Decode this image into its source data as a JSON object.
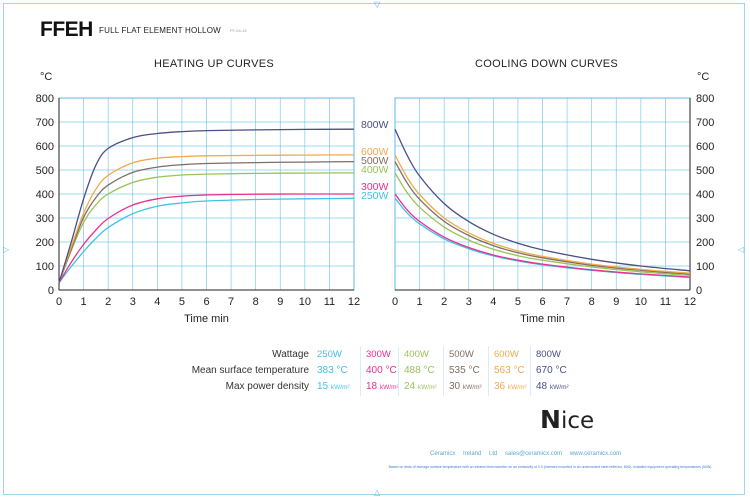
{
  "header": {
    "code": "FFEH",
    "subtitle": "FULL FLAT ELEMENT HOLLOW",
    "doc_version": "FF-04-13"
  },
  "colors": {
    "250W": "#3fc3e6",
    "300W": "#e8318f",
    "400W": "#9bc25a",
    "500W": "#7f6e63",
    "600W": "#f3a94a",
    "800W": "#4a4f86",
    "grid": "#5ab8e0"
  },
  "chart_data": [
    {
      "type": "line",
      "title": "HEATING UP CURVES",
      "xlabel": "Time min",
      "ylabel": "°C",
      "xlim": [
        0,
        12
      ],
      "ylim": [
        0,
        800
      ],
      "xticks": [
        0,
        1,
        2,
        3,
        4,
        5,
        6,
        7,
        8,
        9,
        10,
        11,
        12
      ],
      "yticks": [
        0,
        100,
        200,
        300,
        400,
        500,
        600,
        700,
        800
      ],
      "grid": true,
      "series": [
        {
          "name": "250W",
          "label": "250W",
          "x": [
            0,
            0.5,
            1,
            1.5,
            2,
            3,
            4,
            5,
            6,
            8,
            10,
            12
          ],
          "values": [
            30,
            98,
            160,
            215,
            260,
            318,
            349,
            363,
            371,
            377,
            380,
            382
          ]
        },
        {
          "name": "300W",
          "label": "300W",
          "x": [
            0,
            0.5,
            1,
            1.5,
            2,
            3,
            4,
            5,
            6,
            8,
            10,
            12
          ],
          "values": [
            30,
            116,
            190,
            250,
            298,
            354,
            380,
            391,
            396,
            399,
            400,
            400
          ]
        },
        {
          "name": "400W",
          "label": "400W",
          "x": [
            0,
            0.5,
            1,
            1.5,
            2,
            3,
            4,
            5,
            6,
            8,
            10,
            12
          ],
          "values": [
            30,
            165,
            282,
            355,
            400,
            448,
            470,
            479,
            483,
            486,
            487,
            488
          ]
        },
        {
          "name": "500W",
          "label": "500W",
          "x": [
            0,
            0.5,
            1,
            1.5,
            2,
            3,
            4,
            5,
            6,
            8,
            10,
            12
          ],
          "values": [
            30,
            170,
            303,
            385,
            437,
            490,
            512,
            522,
            527,
            531,
            533,
            535
          ]
        },
        {
          "name": "600W",
          "label": "600W",
          "x": [
            0,
            0.5,
            1,
            1.5,
            2,
            3,
            4,
            5,
            6,
            8,
            10,
            12
          ],
          "values": [
            30,
            180,
            320,
            420,
            478,
            530,
            549,
            556,
            559,
            561,
            562,
            563
          ]
        },
        {
          "name": "800W",
          "label": "800W",
          "x": [
            0,
            0.5,
            1,
            1.5,
            2,
            3,
            4,
            5,
            6,
            8,
            10,
            12
          ],
          "values": [
            30,
            200,
            380,
            520,
            590,
            635,
            652,
            660,
            664,
            667,
            669,
            670
          ]
        }
      ]
    },
    {
      "type": "line",
      "title": "COOLING DOWN CURVES",
      "xlabel": "Time min",
      "ylabel": "°C",
      "xlim": [
        0,
        12
      ],
      "ylim": [
        0,
        800
      ],
      "xticks": [
        0,
        1,
        2,
        3,
        4,
        5,
        6,
        7,
        8,
        9,
        10,
        11,
        12
      ],
      "yticks": [
        0,
        100,
        200,
        300,
        400,
        500,
        600,
        700,
        800
      ],
      "grid": true,
      "series": [
        {
          "name": "250W",
          "x": [
            0,
            0.5,
            1,
            2,
            3,
            4,
            5,
            6,
            8,
            10,
            12
          ],
          "values": [
            383,
            320,
            276,
            213,
            172,
            142,
            121,
            105,
            82,
            65,
            52
          ]
        },
        {
          "name": "300W",
          "x": [
            0,
            0.5,
            1,
            2,
            3,
            4,
            5,
            6,
            8,
            10,
            12
          ],
          "values": [
            400,
            333,
            286,
            220,
            177,
            146,
            124,
            108,
            84,
            67,
            54
          ]
        },
        {
          "name": "400W",
          "x": [
            0,
            0.5,
            1,
            2,
            3,
            4,
            5,
            6,
            8,
            10,
            12
          ],
          "values": [
            488,
            405,
            345,
            262,
            208,
            170,
            143,
            124,
            96,
            76,
            61
          ]
        },
        {
          "name": "500W",
          "x": [
            0,
            0.5,
            1,
            2,
            3,
            4,
            5,
            6,
            8,
            10,
            12
          ],
          "values": [
            535,
            445,
            378,
            286,
            227,
            185,
            155,
            134,
            103,
            82,
            66
          ]
        },
        {
          "name": "600W",
          "x": [
            0,
            0.5,
            1,
            2,
            3,
            4,
            5,
            6,
            8,
            10,
            12
          ],
          "values": [
            563,
            468,
            398,
            300,
            238,
            194,
            163,
            140,
            108,
            86,
            70
          ]
        },
        {
          "name": "800W",
          "x": [
            0,
            0.5,
            1,
            2,
            3,
            4,
            5,
            6,
            8,
            10,
            12
          ],
          "values": [
            670,
            560,
            475,
            360,
            285,
            232,
            195,
            167,
            128,
            100,
            80
          ]
        }
      ]
    }
  ],
  "table": {
    "labels": {
      "wattage": "Wattage",
      "temperature": "Mean surface temperature",
      "density": "Max power density"
    },
    "columns": [
      {
        "wattage": "250W",
        "temperature": "383 °C",
        "density_value": "15",
        "density_unit": "kW/m²",
        "color_key": "250W"
      },
      {
        "wattage": "300W",
        "temperature": "400 °C",
        "density_value": "18",
        "density_unit": "kW/m²",
        "color_key": "300W"
      },
      {
        "wattage": "400W",
        "temperature": "488 °C",
        "density_value": "24",
        "density_unit": "kW/m²",
        "color_key": "400W"
      },
      {
        "wattage": "500W",
        "temperature": "535 °C",
        "density_value": "30",
        "density_unit": "kW/m²",
        "color_key": "500W"
      },
      {
        "wattage": "600W",
        "temperature": "563 °C",
        "density_value": "36",
        "density_unit": "kW/m²",
        "color_key": "600W"
      },
      {
        "wattage": "800W",
        "temperature": "670 °C",
        "density_value": "48",
        "density_unit": "kW/m²",
        "color_key": "800W"
      }
    ]
  },
  "logo": {
    "initial": "N",
    "rest": "ice"
  },
  "footer": {
    "company": "Ceramicx Ireland Ltd",
    "email": "sales@ceramicx.com",
    "website": "www.ceramicx.com",
    "note": "Based on tests of average surface temperature with an infrared thermometer on an emissivity of 0.9 (element mounted in an unshrouded steel reflector, 80Ω). Installed equipment operating temperatures (50W)"
  }
}
